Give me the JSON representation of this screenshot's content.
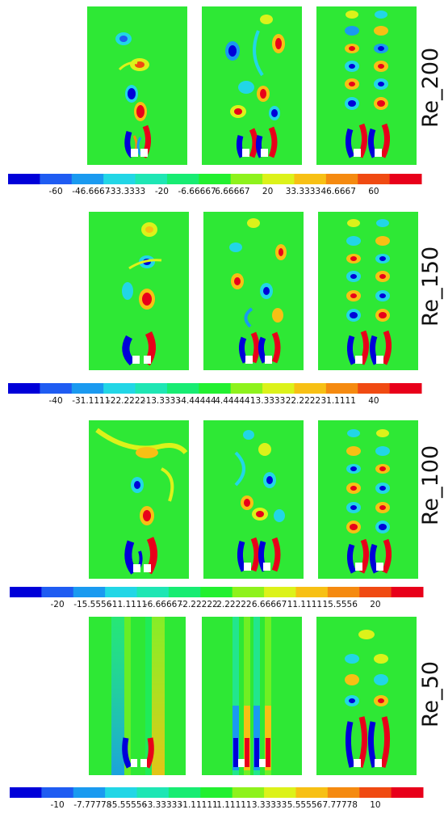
{
  "figure": {
    "row_labels": [
      "Re_200",
      "Re_150",
      "Re_100",
      "Re_50"
    ],
    "colormap": [
      "#0000d9",
      "#1f5cf2",
      "#1a9af0",
      "#22d6e6",
      "#1ee6b4",
      "#17ec72",
      "#22f030",
      "#8ef21c",
      "#dcf21a",
      "#f7c014",
      "#f58a10",
      "#f04a12",
      "#e8001a"
    ],
    "background_color": "#2ee835",
    "rows": [
      {
        "label": "Re_200",
        "colorbar_ticks": [
          "-60",
          "-46.6667",
          "-33.3333",
          "-20",
          "-6.66667",
          "6.66667",
          "20",
          "33.3333",
          "46.6667",
          "60"
        ],
        "panels": [
          "left",
          "center",
          "right"
        ]
      },
      {
        "label": "Re_150",
        "colorbar_ticks": [
          "-40",
          "-31.1111",
          "-22.2222",
          "-13.3333",
          "-4.44444",
          "4.44444",
          "13.3333",
          "22.2222",
          "31.1111",
          "40"
        ],
        "panels": [
          "left",
          "center",
          "right"
        ]
      },
      {
        "label": "Re_100",
        "colorbar_ticks": [
          "-20",
          "-15.5556",
          "-11.1111",
          "-6.66667",
          "-2.22222",
          "2.22222",
          "6.66667",
          "11.1111",
          "15.5556",
          "20"
        ],
        "panels": [
          "left",
          "center",
          "right"
        ]
      },
      {
        "label": "Re_50",
        "colorbar_ticks": [
          "-10",
          "-7.77778",
          "-5.55556",
          "-3.33333",
          "-1.11111",
          "1.11111",
          "3.33333",
          "5.55556",
          "7.77778",
          "10"
        ],
        "panels": [
          "left",
          "center",
          "right"
        ]
      }
    ]
  }
}
